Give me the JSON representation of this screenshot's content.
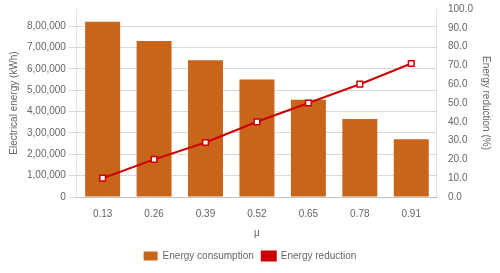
{
  "chart_data": {
    "type": "bar",
    "xlabel": "μ",
    "ylabel": "Electrical energy (kWh)",
    "y2label": "Energy reduction (%)",
    "categories": [
      "0.13",
      "0.26",
      "0.39",
      "0.52",
      "0.65",
      "0.78",
      "0.91"
    ],
    "series": [
      {
        "name": "Energy consumption",
        "type": "bar",
        "color": "#C8651B",
        "values": [
          820000,
          730000,
          640000,
          550000,
          455000,
          365000,
          270000
        ]
      },
      {
        "name": "Energy reduction",
        "type": "line",
        "axis": "y2",
        "color": "#CC0000",
        "marker": "square",
        "line_style": "solid",
        "values": [
          10.0,
          20.0,
          29.0,
          40.0,
          50.0,
          60.0,
          71.0
        ]
      }
    ],
    "ylim": [
      0,
      880000
    ],
    "yticks": [
      0,
      {
        "value": 100000,
        "label": "1,00,000"
      },
      {
        "value": 200000,
        "label": "2,00,000"
      },
      {
        "value": 300000,
        "label": "3,00,000"
      },
      {
        "value": 400000,
        "label": "4,00,000"
      },
      {
        "value": 500000,
        "label": "5,00,000"
      },
      {
        "value": 600000,
        "label": "6,00,000"
      },
      {
        "value": 700000,
        "label": "7,00,000"
      },
      {
        "value": 800000,
        "label": "8,00,000"
      }
    ],
    "y2lim": [
      0.0,
      100.0
    ],
    "y2ticks": [
      {
        "value": 0,
        "label": "0.0"
      },
      {
        "value": 10,
        "label": "10.0"
      },
      {
        "value": 20,
        "label": "20.0"
      },
      {
        "value": 30,
        "label": "30.0"
      },
      {
        "value": 40,
        "label": "40.0"
      },
      {
        "value": 50,
        "label": "50.0"
      },
      {
        "value": 60,
        "label": "60.0"
      },
      {
        "value": 70,
        "label": "70.0"
      },
      {
        "value": 80,
        "label": "80.0"
      },
      {
        "value": 90,
        "label": "90.0"
      },
      {
        "value": 100,
        "label": "100.0"
      }
    ],
    "grid": true,
    "grid_color": "#D9D9D9",
    "legend": "bottom"
  }
}
